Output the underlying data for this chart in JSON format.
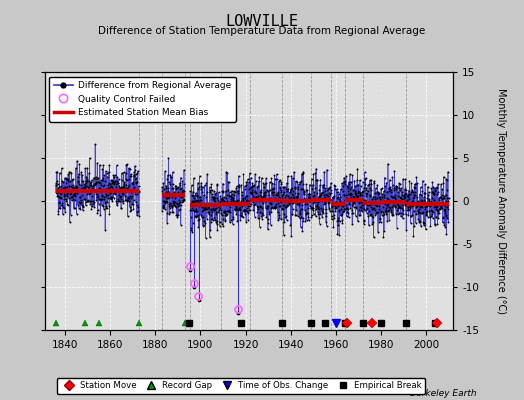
{
  "title": "LOWVILLE",
  "subtitle": "Difference of Station Temperature Data from Regional Average",
  "ylabel": "Monthly Temperature Anomaly Difference (°C)",
  "xlabel_years": [
    1840,
    1860,
    1880,
    1900,
    1920,
    1940,
    1960,
    1980,
    2000
  ],
  "ylim": [
    -15,
    15
  ],
  "yticks": [
    -15,
    -10,
    -5,
    0,
    5,
    10,
    15
  ],
  "xlim": [
    1831,
    2012
  ],
  "bg_color": "#c8c8c8",
  "plot_bg_color": "#e0e0e0",
  "credit": "Berkeley Earth",
  "seed": 42,
  "segments": [
    {
      "start": 1836.0,
      "end": 1873.0,
      "bias": 1.2
    },
    {
      "start": 1883.0,
      "end": 1893.0,
      "bias": 0.7
    },
    {
      "start": 1895.5,
      "end": 1909.0,
      "bias": -0.5
    },
    {
      "start": 1909.0,
      "end": 1922.0,
      "bias": -0.3
    },
    {
      "start": 1922.0,
      "end": 1936.0,
      "bias": 0.1
    },
    {
      "start": 1936.0,
      "end": 1949.0,
      "bias": 0.0
    },
    {
      "start": 1949.0,
      "end": 1958.0,
      "bias": 0.15
    },
    {
      "start": 1958.0,
      "end": 1964.0,
      "bias": -0.3
    },
    {
      "start": 1964.0,
      "end": 1972.0,
      "bias": 0.1
    },
    {
      "start": 1972.0,
      "end": 1980.0,
      "bias": -0.2
    },
    {
      "start": 1980.0,
      "end": 1991.0,
      "bias": -0.15
    },
    {
      "start": 1991.0,
      "end": 2010.0,
      "bias": -0.3
    }
  ],
  "vertical_gap_lines": [
    1873,
    1883,
    1893,
    1895.5,
    1909,
    1922,
    1936,
    1949,
    1958,
    1964,
    1972,
    1980,
    1991
  ],
  "station_moves": [
    1965,
    1976,
    2005
  ],
  "record_gaps": [
    1836,
    1849,
    1855,
    1873,
    1893,
    1964
  ],
  "obs_changes": [
    1960
  ],
  "empirical_breaks": [
    1895,
    1918,
    1936,
    1949,
    1955,
    1964,
    1972,
    1980,
    1991,
    2004
  ],
  "qc_fail_times": [
    1895.5,
    1897.3,
    1899.1,
    1916.7
  ],
  "qc_fail_values": [
    -7.5,
    -9.5,
    -11.0,
    -12.5
  ],
  "spikes": [
    {
      "x": 1895.3,
      "y_from": -0.5,
      "y_to": -8.0
    },
    {
      "x": 1897.0,
      "y_from": -0.5,
      "y_to": -10.0
    },
    {
      "x": 1899.5,
      "y_from": -0.5,
      "y_to": -11.5
    },
    {
      "x": 1916.5,
      "y_from": -0.3,
      "y_to": -13.0
    }
  ],
  "data_line_color": "#3333cc",
  "bias_line_color": "#cc0000",
  "qc_circle_color": "#ff66ff",
  "gap_line_color": "#888888",
  "noise_std": 1.4,
  "marker_y": -14.2
}
